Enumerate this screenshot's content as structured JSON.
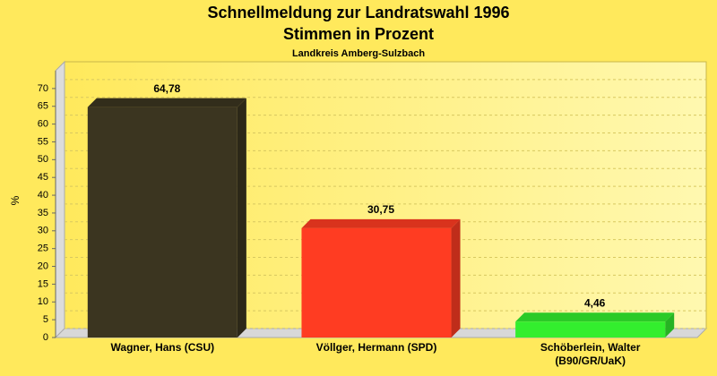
{
  "chart_data": {
    "type": "bar",
    "title": "Schnellmeldung zur Landratswahl 1996",
    "subtitle": "Stimmen in Prozent",
    "caption": "Landkreis Amberg-Sulzbach",
    "y_label": "%",
    "categories": [
      "Wagner, Hans (CSU)",
      "Völlger, Hermann (SPD)",
      "Schöberlein, Walter (B90/GR/UaK)"
    ],
    "values": [
      64.78,
      30.75,
      4.46
    ],
    "value_labels": [
      "64,78",
      "30,75",
      "4,46"
    ],
    "colors": [
      "#3b3520",
      "#ff3c22",
      "#33ee2e"
    ],
    "ylim": [
      0,
      75
    ],
    "yticks": [
      0,
      5,
      10,
      15,
      20,
      25,
      30,
      35,
      40,
      45,
      50,
      55,
      60,
      65,
      70
    ],
    "grid": true
  }
}
